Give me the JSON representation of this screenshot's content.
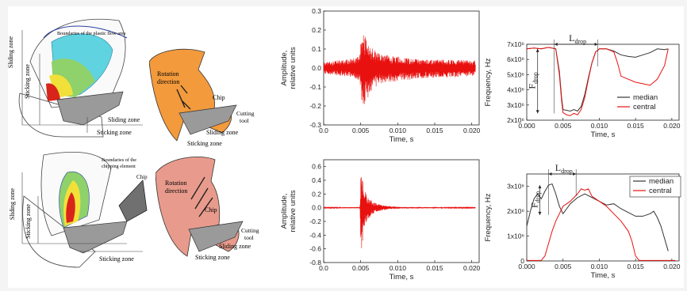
{
  "colors": {
    "signal": "#e8110f",
    "median": "#333333",
    "central": "#e8110f",
    "chip_orange": "#f39a3c",
    "chip_pink": "#e89b8c",
    "tool_gray": "#9a9a9a"
  },
  "diagrams": {
    "top_left": {
      "boundary_label": "Boundaries of the plastic flow area",
      "sliding_zone": "Sliding zone",
      "sticking_zone": "Sticking zone",
      "sliding_zone_bottom": "Sliding zone",
      "sticking_zone_bottom": "Sticking zone"
    },
    "top_right": {
      "rotation": "Rotation",
      "direction": "direction",
      "chip": "Chip",
      "cutting": "Cutting",
      "tool": "tool",
      "sliding_zone": "Sliding zone",
      "sticking_zone": "Sticking zone"
    },
    "bottom_left": {
      "boundary_line1": "Boundaries of the",
      "boundary_line2": "chipping element",
      "chip": "Chip",
      "sliding_zone": "Sliding zone",
      "sticking_zone_left": "Sticking zone",
      "sticking_zone_bottom": "Sticking zone"
    },
    "bottom_right": {
      "rotation": "Rotation",
      "direction": "direction",
      "chip": "Chip",
      "cutting": "Cutting",
      "tool": "tool",
      "sliding_zone": "Sliding zone",
      "sticking_zone": "Sticking zone"
    }
  },
  "chart_data": [
    {
      "id": "amp_top",
      "type": "line",
      "title": "",
      "xlabel": "Time, s",
      "ylabel_line1": "Amplitude,",
      "ylabel_line2": "relative units",
      "xlim": [
        0.0,
        0.021
      ],
      "ylim": [
        -0.3,
        0.3
      ],
      "xticks": [
        "0.0",
        "0.005",
        "0.010",
        "0.015",
        "0.020"
      ],
      "xtick_values": [
        0,
        0.005,
        0.01,
        0.015,
        0.02
      ],
      "yticks": [
        "-0.3",
        "-0.2",
        "-0.1",
        "0.0",
        "0.1",
        "0.2",
        "0.3"
      ],
      "ytick_values": [
        -0.3,
        -0.2,
        -0.1,
        0.0,
        0.1,
        0.2,
        0.3
      ],
      "series": [
        {
          "envelope_t": [
            0.0,
            0.004,
            0.0049,
            0.0052,
            0.0056,
            0.0062,
            0.007,
            0.008,
            0.01,
            0.012,
            0.015,
            0.018,
            0.0205
          ],
          "envelope_upper": [
            0.03,
            0.05,
            0.07,
            0.22,
            0.18,
            0.12,
            0.09,
            0.07,
            0.06,
            0.05,
            0.045,
            0.045,
            0.04
          ],
          "envelope_lower": [
            -0.03,
            -0.05,
            -0.07,
            -0.25,
            -0.2,
            -0.13,
            -0.1,
            -0.08,
            -0.07,
            -0.06,
            -0.05,
            -0.05,
            -0.04
          ]
        }
      ]
    },
    {
      "id": "freq_top",
      "type": "line",
      "title": "",
      "xlabel": "Time, s",
      "ylabel": "Frequency, Hz",
      "xlim": [
        0.0,
        0.021
      ],
      "ylim": [
        2000000,
        7000000
      ],
      "xticks": [
        "0.000",
        "0.005",
        "0.010",
        "0.015",
        "0.020"
      ],
      "xtick_values": [
        0,
        0.005,
        0.01,
        0.015,
        0.02
      ],
      "yticks": [
        "2x10⁶",
        "3x10⁶",
        "4x10⁶",
        "5x10⁶",
        "6x10⁶",
        "7x10⁶"
      ],
      "ytick_values": [
        2000000,
        3000000,
        4000000,
        5000000,
        6000000,
        7000000
      ],
      "legend": "right",
      "annotations": {
        "l_drop": "L",
        "l_drop_sub": "drop",
        "f_drop": "F",
        "f_drop_sub": "drop"
      },
      "series": [
        {
          "name": "median",
          "x": [
            0.0,
            0.001,
            0.002,
            0.003,
            0.004,
            0.0045,
            0.0048,
            0.005,
            0.0055,
            0.006,
            0.0065,
            0.007,
            0.0075,
            0.008,
            0.0085,
            0.009,
            0.0095,
            0.0098,
            0.01,
            0.011,
            0.012,
            0.013,
            0.014,
            0.015,
            0.016,
            0.017,
            0.018,
            0.019,
            0.0195
          ],
          "y": [
            6700000,
            6750000,
            6700000,
            6800000,
            6700000,
            5200000,
            3500000,
            2700000,
            2650000,
            2600000,
            2700000,
            2600000,
            2900000,
            3700000,
            4800000,
            5800000,
            6500000,
            6600000,
            6700000,
            6700000,
            6550000,
            6300000,
            6200000,
            6150000,
            6300000,
            6450000,
            6700000,
            6650000,
            6700000
          ]
        },
        {
          "name": "central",
          "x": [
            0.0,
            0.001,
            0.002,
            0.003,
            0.004,
            0.0045,
            0.0048,
            0.005,
            0.0055,
            0.006,
            0.0065,
            0.007,
            0.0075,
            0.008,
            0.0085,
            0.009,
            0.0095,
            0.0098,
            0.01,
            0.011,
            0.012,
            0.0125,
            0.013,
            0.014,
            0.015,
            0.016,
            0.017,
            0.018,
            0.019,
            0.0195
          ],
          "y": [
            6700000,
            6750000,
            6700000,
            6800000,
            6700000,
            5000000,
            3300000,
            2500000,
            2350000,
            2300000,
            2450000,
            2350000,
            2700000,
            3500000,
            4700000,
            5800000,
            6500000,
            6600000,
            6700000,
            6700000,
            6500000,
            5800000,
            4900000,
            4700000,
            4500000,
            4400000,
            4300000,
            4700000,
            5600000,
            6700000
          ]
        }
      ]
    },
    {
      "id": "amp_bottom",
      "type": "line",
      "title": "",
      "xlabel": "Time, s",
      "ylabel_line1": "Amplitude,",
      "ylabel_line2": "relative units",
      "xlim": [
        0.0,
        0.021
      ],
      "ylim": [
        -0.8,
        0.7
      ],
      "xticks": [
        "0.0",
        "0.005",
        "0.010",
        "0.015",
        "0.020"
      ],
      "xtick_values": [
        0,
        0.005,
        0.01,
        0.015,
        0.02
      ],
      "yticks": [
        "-0.8",
        "-0.6",
        "-0.4",
        "-0.2",
        "0.0",
        "0.2",
        "0.4",
        "0.6"
      ],
      "ytick_values": [
        -0.8,
        -0.6,
        -0.4,
        -0.2,
        0.0,
        0.2,
        0.4,
        0.6
      ],
      "series": [
        {
          "envelope_t": [
            0.0,
            0.0049,
            0.00505,
            0.0052,
            0.0055,
            0.006,
            0.0068,
            0.0078,
            0.009,
            0.011,
            0.0205
          ],
          "envelope_upper": [
            0.005,
            0.01,
            0.62,
            0.45,
            0.3,
            0.15,
            0.08,
            0.04,
            0.02,
            0.01,
            0.005
          ],
          "envelope_lower": [
            -0.005,
            -0.01,
            -0.8,
            -0.55,
            -0.32,
            -0.16,
            -0.08,
            -0.04,
            -0.02,
            -0.01,
            -0.005
          ]
        }
      ]
    },
    {
      "id": "freq_bottom",
      "type": "line",
      "title": "",
      "xlabel": "Time, s",
      "ylabel": "Frequency, Hz",
      "xlim": [
        0.0,
        0.021
      ],
      "ylim": [
        0,
        3500000
      ],
      "xticks": [
        "0.000",
        "0.005",
        "0.010",
        "0.015",
        "0.020"
      ],
      "xtick_values": [
        0,
        0.005,
        0.01,
        0.015,
        0.02
      ],
      "yticks": [
        "0",
        "1x10⁶",
        "2x10⁶",
        "3x10⁶"
      ],
      "ytick_values": [
        0,
        1000000,
        2000000,
        3000000
      ],
      "legend": "top-right",
      "annotations": {
        "l_drop": "L",
        "l_drop_sub": "drop",
        "f_drop": "F",
        "f_drop_sub": "drop"
      },
      "series": [
        {
          "name": "median",
          "x": [
            0.0,
            0.0005,
            0.001,
            0.0015,
            0.002,
            0.0025,
            0.003,
            0.0035,
            0.004,
            0.0045,
            0.005,
            0.0055,
            0.006,
            0.007,
            0.008,
            0.009,
            0.01,
            0.011,
            0.012,
            0.013,
            0.014,
            0.015,
            0.016,
            0.017,
            0.0175,
            0.018,
            0.0185,
            0.019,
            0.0195
          ],
          "y": [
            1400000,
            2000000,
            2500000,
            2700000,
            2500000,
            2800000,
            3050000,
            3100000,
            2700000,
            2200000,
            1900000,
            2100000,
            2300000,
            2550000,
            2700000,
            2550000,
            2400000,
            2250000,
            2300000,
            2100000,
            1950000,
            1800000,
            1800000,
            1900000,
            2000000,
            1750000,
            1400000,
            900000,
            400000
          ]
        },
        {
          "name": "central",
          "x": [
            0.0,
            0.002,
            0.0025,
            0.003,
            0.0035,
            0.004,
            0.0045,
            0.005,
            0.006,
            0.007,
            0.0075,
            0.008,
            0.0085,
            0.009,
            0.01,
            0.011,
            0.012,
            0.013,
            0.014,
            0.0145,
            0.015,
            0.0155,
            0.016,
            0.018,
            0.0205
          ],
          "y": [
            20000,
            20000,
            200000,
            700000,
            1200000,
            1600000,
            1900000,
            2200000,
            2400000,
            2700000,
            2900000,
            2850000,
            2900000,
            2600000,
            2400000,
            2200000,
            1900000,
            1600000,
            1200000,
            800000,
            200000,
            20000,
            20000,
            20000,
            20000
          ]
        }
      ]
    }
  ]
}
